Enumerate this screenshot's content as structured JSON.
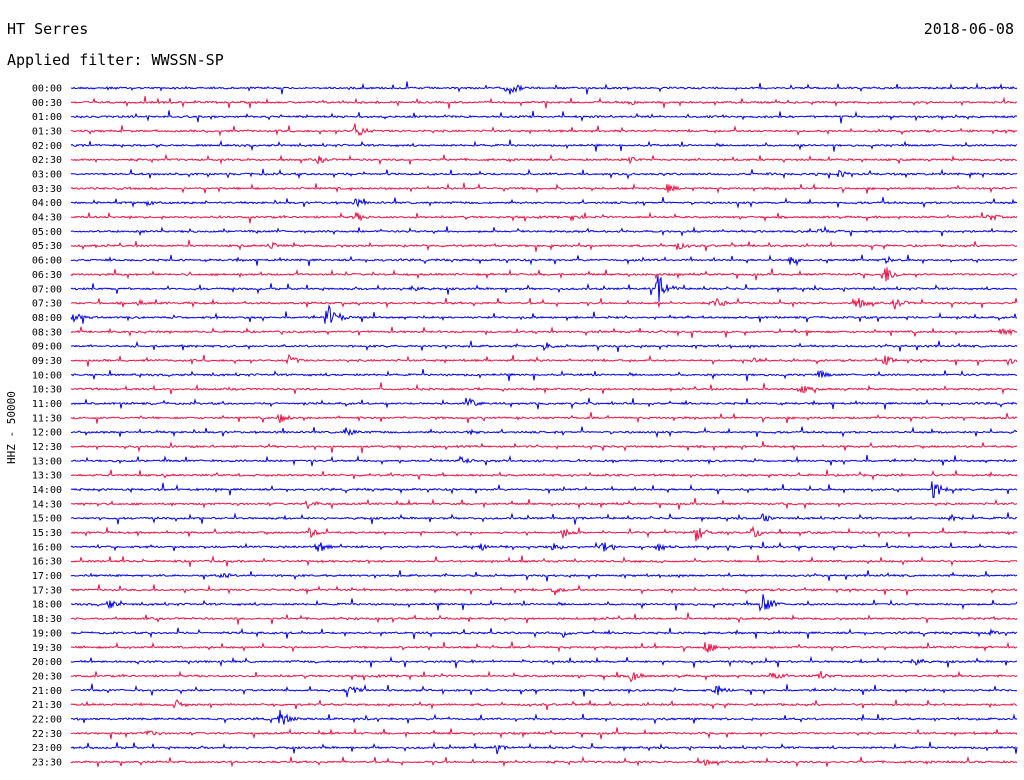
{
  "header": {
    "station": "HT Serres",
    "date": "2018-06-08",
    "filter_label": "Applied filter: WWSSN-SP"
  },
  "axis": {
    "channel_label": "HHZ - 50000"
  },
  "colors": {
    "trace_even_hour": "#0000ee",
    "trace_half_hour": "#ee1144",
    "text": "#000000",
    "background": "#ffffff"
  },
  "traces": [
    {
      "time": "00:00",
      "color": "blue",
      "events": [
        {
          "at": 0.46,
          "amp": 11
        }
      ]
    },
    {
      "time": "00:30",
      "color": "red",
      "events": [
        {
          "at": 0.59,
          "amp": 4
        }
      ]
    },
    {
      "time": "01:00",
      "color": "blue",
      "events": []
    },
    {
      "time": "01:30",
      "color": "red",
      "events": [
        {
          "at": 0.3,
          "amp": 9
        }
      ]
    },
    {
      "time": "02:00",
      "color": "blue",
      "events": []
    },
    {
      "time": "02:30",
      "color": "red",
      "events": [
        {
          "at": 0.26,
          "amp": 5
        },
        {
          "at": 0.59,
          "amp": 4
        }
      ]
    },
    {
      "time": "03:00",
      "color": "blue",
      "events": [
        {
          "at": 0.81,
          "amp": 5
        }
      ]
    },
    {
      "time": "03:30",
      "color": "red",
      "events": [
        {
          "at": 0.63,
          "amp": 5
        }
      ]
    },
    {
      "time": "04:00",
      "color": "blue",
      "events": [
        {
          "at": 0.08,
          "amp": 4
        },
        {
          "at": 0.3,
          "amp": 5
        }
      ]
    },
    {
      "time": "04:30",
      "color": "red",
      "events": [
        {
          "at": 0.3,
          "amp": 6
        },
        {
          "at": 0.53,
          "amp": 4
        },
        {
          "at": 0.97,
          "amp": 5
        }
      ]
    },
    {
      "time": "05:00",
      "color": "blue",
      "events": [
        {
          "at": 0.79,
          "amp": 5
        }
      ]
    },
    {
      "time": "05:30",
      "color": "red",
      "events": [
        {
          "at": 0.21,
          "amp": 5
        },
        {
          "at": 0.64,
          "amp": 5
        }
      ]
    },
    {
      "time": "06:00",
      "color": "blue",
      "events": [
        {
          "at": 0.76,
          "amp": 5
        },
        {
          "at": 0.86,
          "amp": 4
        }
      ]
    },
    {
      "time": "06:30",
      "color": "red",
      "events": [
        {
          "at": 0.86,
          "amp": 11
        }
      ]
    },
    {
      "time": "07:00",
      "color": "blue",
      "events": [
        {
          "at": 0.36,
          "amp": 5
        },
        {
          "at": 0.62,
          "amp": 16
        }
      ]
    },
    {
      "time": "07:30",
      "color": "red",
      "events": [
        {
          "at": 0.07,
          "amp": 4
        },
        {
          "at": 0.68,
          "amp": 7
        },
        {
          "at": 0.83,
          "amp": 8
        },
        {
          "at": 0.87,
          "amp": 7
        }
      ]
    },
    {
      "time": "08:00",
      "color": "blue",
      "events": [
        {
          "at": 0.0,
          "amp": 8
        },
        {
          "at": 0.27,
          "amp": 17
        }
      ]
    },
    {
      "time": "08:30",
      "color": "red",
      "events": [
        {
          "at": 0.98,
          "amp": 8
        }
      ]
    },
    {
      "time": "09:00",
      "color": "blue",
      "events": [
        {
          "at": 0.5,
          "amp": 4
        }
      ]
    },
    {
      "time": "09:30",
      "color": "red",
      "events": [
        {
          "at": 0.23,
          "amp": 6
        },
        {
          "at": 0.72,
          "amp": 5
        },
        {
          "at": 0.86,
          "amp": 6
        },
        {
          "at": 0.99,
          "amp": 5
        }
      ]
    },
    {
      "time": "10:00",
      "color": "blue",
      "events": [
        {
          "at": 0.79,
          "amp": 5
        }
      ]
    },
    {
      "time": "10:30",
      "color": "red",
      "events": [
        {
          "at": 0.77,
          "amp": 6
        }
      ]
    },
    {
      "time": "11:00",
      "color": "blue",
      "events": [
        {
          "at": 0.42,
          "amp": 6
        }
      ]
    },
    {
      "time": "11:30",
      "color": "red",
      "events": [
        {
          "at": 0.22,
          "amp": 6
        }
      ]
    },
    {
      "time": "12:00",
      "color": "blue",
      "events": [
        {
          "at": 0.29,
          "amp": 6
        },
        {
          "at": 0.42,
          "amp": 5
        }
      ]
    },
    {
      "time": "12:30",
      "color": "red",
      "events": []
    },
    {
      "time": "13:00",
      "color": "blue",
      "events": [
        {
          "at": 0.41,
          "amp": 6
        }
      ]
    },
    {
      "time": "13:30",
      "color": "red",
      "events": []
    },
    {
      "time": "14:00",
      "color": "blue",
      "events": [
        {
          "at": 0.91,
          "amp": 11
        }
      ]
    },
    {
      "time": "14:30",
      "color": "red",
      "events": [
        {
          "at": 0.25,
          "amp": 6
        }
      ]
    },
    {
      "time": "15:00",
      "color": "blue",
      "events": [
        {
          "at": 0.73,
          "amp": 5
        },
        {
          "at": 0.93,
          "amp": 5
        }
      ]
    },
    {
      "time": "15:30",
      "color": "red",
      "events": [
        {
          "at": 0.25,
          "amp": 7
        },
        {
          "at": 0.52,
          "amp": 6
        },
        {
          "at": 0.66,
          "amp": 10
        },
        {
          "at": 0.72,
          "amp": 8
        }
      ]
    },
    {
      "time": "16:00",
      "color": "blue",
      "events": [
        {
          "at": 0.26,
          "amp": 7
        },
        {
          "at": 0.43,
          "amp": 6
        },
        {
          "at": 0.51,
          "amp": 6
        },
        {
          "at": 0.56,
          "amp": 7
        },
        {
          "at": 0.62,
          "amp": 6
        }
      ]
    },
    {
      "time": "16:30",
      "color": "red",
      "events": []
    },
    {
      "time": "17:00",
      "color": "blue",
      "events": [
        {
          "at": 0.16,
          "amp": 4
        }
      ]
    },
    {
      "time": "17:30",
      "color": "red",
      "events": [
        {
          "at": 0.51,
          "amp": 6
        }
      ]
    },
    {
      "time": "18:00",
      "color": "blue",
      "events": [
        {
          "at": 0.04,
          "amp": 5
        },
        {
          "at": 0.73,
          "amp": 14
        }
      ]
    },
    {
      "time": "18:30",
      "color": "red",
      "events": []
    },
    {
      "time": "19:00",
      "color": "blue",
      "events": [
        {
          "at": 0.52,
          "amp": 5
        },
        {
          "at": 0.97,
          "amp": 4
        }
      ]
    },
    {
      "time": "19:30",
      "color": "red",
      "events": [
        {
          "at": 0.67,
          "amp": 8
        }
      ]
    },
    {
      "time": "20:00",
      "color": "blue",
      "events": [
        {
          "at": 0.89,
          "amp": 7
        }
      ]
    },
    {
      "time": "20:30",
      "color": "red",
      "events": [
        {
          "at": 0.59,
          "amp": 8
        },
        {
          "at": 0.74,
          "amp": 6
        },
        {
          "at": 0.79,
          "amp": 5
        }
      ]
    },
    {
      "time": "21:00",
      "color": "blue",
      "events": [
        {
          "at": 0.29,
          "amp": 9
        },
        {
          "at": 0.68,
          "amp": 8
        }
      ]
    },
    {
      "time": "21:30",
      "color": "red",
      "events": [
        {
          "at": 0.11,
          "amp": 6
        }
      ]
    },
    {
      "time": "22:00",
      "color": "blue",
      "events": [
        {
          "at": 0.22,
          "amp": 10
        }
      ]
    },
    {
      "time": "22:30",
      "color": "red",
      "events": [
        {
          "at": 0.08,
          "amp": 4
        }
      ]
    },
    {
      "time": "23:00",
      "color": "blue",
      "events": [
        {
          "at": 0.45,
          "amp": 4
        }
      ]
    },
    {
      "time": "23:30",
      "color": "red",
      "events": [
        {
          "at": 0.67,
          "amp": 4
        }
      ]
    }
  ]
}
